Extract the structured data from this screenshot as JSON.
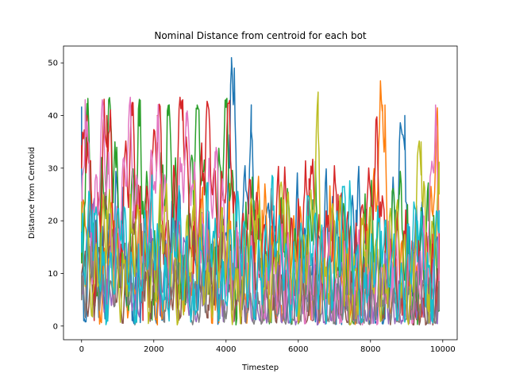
{
  "chart_data": {
    "type": "line",
    "title": "Nominal Distance from centroid for each bot",
    "xlabel": "Timestep",
    "ylabel": "Distance from Centroid",
    "xlim": [
      -500,
      10400
    ],
    "ylim": [
      -2.6,
      53.2
    ],
    "xticks": [
      0,
      2000,
      4000,
      6000,
      8000,
      10000
    ],
    "xtick_labels": [
      "0",
      "2000",
      "4000",
      "6000",
      "8000",
      "10000"
    ],
    "yticks": [
      0,
      10,
      20,
      30,
      40,
      50
    ],
    "ytick_labels": [
      "0",
      "10",
      "20",
      "30",
      "40",
      "50"
    ],
    "grid": false,
    "legend": false,
    "x_range_of_series": [
      0,
      9900
    ],
    "series": [
      {
        "color": "#1f77b4",
        "anchors": [
          [
            0,
            30
          ],
          [
            60,
            1
          ],
          [
            300,
            18
          ],
          [
            600,
            6
          ],
          [
            1000,
            22
          ],
          [
            1400,
            4
          ],
          [
            1800,
            12
          ],
          [
            2200,
            3
          ],
          [
            2600,
            20
          ],
          [
            3000,
            5
          ],
          [
            3400,
            14
          ],
          [
            3800,
            6
          ],
          [
            4100,
            30
          ],
          [
            4150,
            51
          ],
          [
            4230,
            49
          ],
          [
            4300,
            10
          ],
          [
            4700,
            37
          ],
          [
            4800,
            8
          ],
          [
            5200,
            22
          ],
          [
            5600,
            3
          ],
          [
            6000,
            18
          ],
          [
            6400,
            6
          ],
          [
            6800,
            20
          ],
          [
            7200,
            4
          ],
          [
            7600,
            22
          ],
          [
            8000,
            8
          ],
          [
            8400,
            3
          ],
          [
            8700,
            22
          ],
          [
            8950,
            40
          ],
          [
            9050,
            6
          ],
          [
            9400,
            18
          ],
          [
            9700,
            5
          ],
          [
            9900,
            15
          ]
        ],
        "amp": 9
      },
      {
        "color": "#ff7f0e",
        "anchors": [
          [
            0,
            15
          ],
          [
            200,
            24
          ],
          [
            500,
            3
          ],
          [
            900,
            20
          ],
          [
            1300,
            5
          ],
          [
            1700,
            18
          ],
          [
            2100,
            2
          ],
          [
            2500,
            16
          ],
          [
            2900,
            6
          ],
          [
            3300,
            20
          ],
          [
            3700,
            3
          ],
          [
            4100,
            18
          ],
          [
            4500,
            5
          ],
          [
            5000,
            22
          ],
          [
            5500,
            4
          ],
          [
            6000,
            16
          ],
          [
            6500,
            6
          ],
          [
            7000,
            20
          ],
          [
            7500,
            4
          ],
          [
            8000,
            14
          ],
          [
            8330,
            42
          ],
          [
            8400,
            42
          ],
          [
            8480,
            5
          ],
          [
            8900,
            10
          ],
          [
            9300,
            4
          ],
          [
            9700,
            22
          ],
          [
            9860,
            39
          ],
          [
            9900,
            10
          ]
        ],
        "amp": 8
      },
      {
        "color": "#2ca02c",
        "anchors": [
          [
            0,
            12
          ],
          [
            150,
            38
          ],
          [
            400,
            8
          ],
          [
            800,
            40
          ],
          [
            1200,
            6
          ],
          [
            1600,
            38
          ],
          [
            2000,
            4
          ],
          [
            2400,
            40
          ],
          [
            2800,
            6
          ],
          [
            3200,
            42
          ],
          [
            3600,
            8
          ],
          [
            4000,
            43
          ],
          [
            4300,
            6
          ],
          [
            4800,
            22
          ],
          [
            5200,
            3
          ],
          [
            5600,
            20
          ],
          [
            6000,
            6
          ],
          [
            6400,
            24
          ],
          [
            6800,
            3
          ],
          [
            7200,
            18
          ],
          [
            7600,
            4
          ],
          [
            8000,
            20
          ],
          [
            8400,
            6
          ],
          [
            8800,
            25
          ],
          [
            9200,
            3
          ],
          [
            9600,
            20
          ],
          [
            9900,
            8
          ]
        ],
        "amp": 10
      },
      {
        "color": "#d62728",
        "anchors": [
          [
            0,
            30
          ],
          [
            150,
            40
          ],
          [
            350,
            8
          ],
          [
            700,
            40
          ],
          [
            1000,
            12
          ],
          [
            1400,
            40
          ],
          [
            1700,
            10
          ],
          [
            2100,
            40
          ],
          [
            2400,
            8
          ],
          [
            2800,
            43
          ],
          [
            3100,
            10
          ],
          [
            3500,
            42
          ],
          [
            3800,
            15
          ],
          [
            4100,
            40
          ],
          [
            4300,
            10
          ],
          [
            4700,
            22
          ],
          [
            5100,
            12
          ],
          [
            5500,
            24
          ],
          [
            5900,
            10
          ],
          [
            6300,
            28
          ],
          [
            6700,
            12
          ],
          [
            7100,
            25
          ],
          [
            7500,
            10
          ],
          [
            7900,
            23
          ],
          [
            8200,
            31
          ],
          [
            8500,
            10
          ],
          [
            8900,
            12
          ],
          [
            9300,
            8
          ],
          [
            9700,
            10
          ],
          [
            9900,
            10
          ]
        ],
        "amp": 9
      },
      {
        "color": "#9467bd",
        "anchors": [
          [
            0,
            8
          ],
          [
            300,
            20
          ],
          [
            700,
            4
          ],
          [
            1100,
            18
          ],
          [
            1500,
            3
          ],
          [
            1900,
            16
          ],
          [
            2300,
            5
          ],
          [
            2700,
            18
          ],
          [
            3100,
            3
          ],
          [
            3500,
            14
          ],
          [
            3900,
            5
          ],
          [
            4300,
            10
          ],
          [
            4800,
            3
          ],
          [
            5300,
            8
          ],
          [
            5800,
            2
          ],
          [
            6300,
            9
          ],
          [
            6800,
            3
          ],
          [
            7300,
            8
          ],
          [
            7800,
            2
          ],
          [
            8300,
            9
          ],
          [
            8800,
            3
          ],
          [
            9300,
            8
          ],
          [
            9900,
            5
          ]
        ],
        "amp": 6
      },
      {
        "color": "#8c564b",
        "anchors": [
          [
            0,
            10
          ],
          [
            300,
            4
          ],
          [
            700,
            20
          ],
          [
            1100,
            3
          ],
          [
            1500,
            18
          ],
          [
            1900,
            5
          ],
          [
            2300,
            16
          ],
          [
            2700,
            3
          ],
          [
            3100,
            18
          ],
          [
            3500,
            4
          ],
          [
            3900,
            16
          ],
          [
            4300,
            4
          ],
          [
            4800,
            12
          ],
          [
            5300,
            3
          ],
          [
            5800,
            10
          ],
          [
            6300,
            2
          ],
          [
            6800,
            12
          ],
          [
            7300,
            3
          ],
          [
            7800,
            10
          ],
          [
            8300,
            4
          ],
          [
            8800,
            8
          ],
          [
            9300,
            3
          ],
          [
            9900,
            6
          ]
        ],
        "amp": 6
      },
      {
        "color": "#e377c2",
        "anchors": [
          [
            0,
            20
          ],
          [
            100,
            43
          ],
          [
            300,
            12
          ],
          [
            600,
            40
          ],
          [
            900,
            10
          ],
          [
            1300,
            38
          ],
          [
            1700,
            12
          ],
          [
            2100,
            35
          ],
          [
            2500,
            10
          ],
          [
            2900,
            38
          ],
          [
            3300,
            12
          ],
          [
            3700,
            30
          ],
          [
            4100,
            8
          ],
          [
            4600,
            12
          ],
          [
            5100,
            5
          ],
          [
            5600,
            10
          ],
          [
            6100,
            4
          ],
          [
            6600,
            12
          ],
          [
            7100,
            5
          ],
          [
            7600,
            10
          ],
          [
            8100,
            4
          ],
          [
            8600,
            12
          ],
          [
            9100,
            5
          ],
          [
            9600,
            14
          ],
          [
            9800,
            42
          ],
          [
            9900,
            6
          ]
        ],
        "amp": 8
      },
      {
        "color": "#7f7f7f",
        "anchors": [
          [
            0,
            5
          ],
          [
            300,
            14
          ],
          [
            700,
            3
          ],
          [
            1100,
            12
          ],
          [
            1500,
            2
          ],
          [
            1900,
            14
          ],
          [
            2300,
            3
          ],
          [
            2700,
            12
          ],
          [
            3100,
            2
          ],
          [
            3500,
            10
          ],
          [
            3900,
            4
          ],
          [
            4300,
            8
          ],
          [
            4800,
            2
          ],
          [
            5300,
            6
          ],
          [
            5800,
            1
          ],
          [
            6300,
            8
          ],
          [
            6800,
            2
          ],
          [
            7300,
            6
          ],
          [
            7800,
            1
          ],
          [
            8300,
            7
          ],
          [
            8800,
            2
          ],
          [
            9300,
            6
          ],
          [
            9900,
            3
          ]
        ],
        "amp": 5
      },
      {
        "color": "#bcbd22",
        "anchors": [
          [
            0,
            18
          ],
          [
            300,
            6
          ],
          [
            700,
            22
          ],
          [
            1100,
            5
          ],
          [
            1500,
            20
          ],
          [
            1900,
            6
          ],
          [
            2300,
            22
          ],
          [
            2700,
            4
          ],
          [
            3100,
            20
          ],
          [
            3500,
            6
          ],
          [
            3900,
            18
          ],
          [
            4300,
            5
          ],
          [
            4800,
            20
          ],
          [
            5200,
            5
          ],
          [
            5600,
            24
          ],
          [
            6000,
            6
          ],
          [
            6400,
            22
          ],
          [
            6550,
            37
          ],
          [
            6700,
            5
          ],
          [
            7100,
            20
          ],
          [
            7500,
            4
          ],
          [
            7900,
            18
          ],
          [
            8300,
            5
          ],
          [
            8700,
            20
          ],
          [
            9100,
            4
          ],
          [
            9400,
            35
          ],
          [
            9600,
            6
          ],
          [
            9900,
            25
          ]
        ],
        "amp": 8
      },
      {
        "color": "#17becf",
        "anchors": [
          [
            0,
            14
          ],
          [
            300,
            22
          ],
          [
            700,
            4
          ],
          [
            1100,
            20
          ],
          [
            1500,
            3
          ],
          [
            1900,
            22
          ],
          [
            2300,
            5
          ],
          [
            2700,
            20
          ],
          [
            3100,
            3
          ],
          [
            3500,
            22
          ],
          [
            3900,
            5
          ],
          [
            4300,
            20
          ],
          [
            4800,
            5
          ],
          [
            5300,
            22
          ],
          [
            5800,
            4
          ],
          [
            6300,
            20
          ],
          [
            6800,
            6
          ],
          [
            7300,
            22
          ],
          [
            7800,
            4
          ],
          [
            8300,
            18
          ],
          [
            8800,
            5
          ],
          [
            9300,
            20
          ],
          [
            9700,
            5
          ],
          [
            9900,
            22
          ]
        ],
        "amp": 8
      }
    ]
  }
}
